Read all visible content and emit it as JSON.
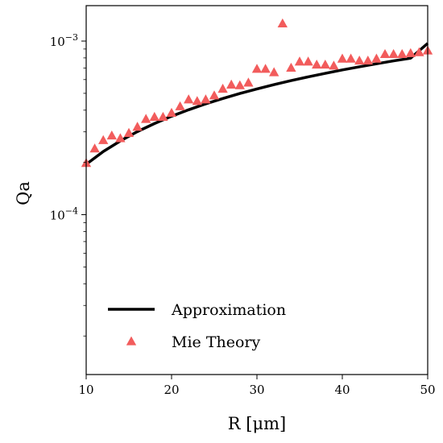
{
  "chart_data": {
    "type": "scatter",
    "title": "",
    "xlabel": "R [μm]",
    "ylabel": "Qa",
    "xlim": [
      10,
      50
    ],
    "ylim": [
      1.2e-05,
      0.0016
    ],
    "yscale": "log",
    "x_ticks": [
      {
        "value": 10,
        "label": "10"
      },
      {
        "value": 20,
        "label": "20"
      },
      {
        "value": 30,
        "label": "30"
      },
      {
        "value": 40,
        "label": "40"
      },
      {
        "value": 50,
        "label": "50"
      }
    ],
    "y_ticks": [
      {
        "value": 0.0001,
        "mantissa": "10",
        "exponent": "−4"
      },
      {
        "value": 0.001,
        "mantissa": "10",
        "exponent": "−3"
      }
    ],
    "legend_position": "lower-left",
    "grid": false,
    "series": [
      {
        "name": "Approximation",
        "type": "line",
        "color": "#000000",
        "x": [
          10,
          12,
          14,
          16,
          18,
          20,
          22,
          24,
          26,
          28,
          30,
          32,
          34,
          36,
          38,
          40,
          42,
          44,
          46,
          48,
          50
        ],
        "y": [
          0.000195,
          0.000231,
          0.000266,
          0.000301,
          0.000335,
          0.000369,
          0.000402,
          0.000435,
          0.000467,
          0.000499,
          0.00053,
          0.000561,
          0.000592,
          0.000622,
          0.000652,
          0.000682,
          0.000711,
          0.00074,
          0.000769,
          0.000797,
          0.00097
        ]
      },
      {
        "name": "Mie Theory",
        "type": "scatter",
        "marker": "triangle",
        "color": "#f25c5c",
        "x": [
          10,
          11,
          12,
          13,
          14,
          15,
          16,
          17,
          18,
          19,
          20,
          21,
          22,
          23,
          24,
          25,
          26,
          27,
          28,
          29,
          30,
          31,
          32,
          33,
          34,
          35,
          36,
          37,
          38,
          39,
          40,
          41,
          42,
          43,
          44,
          45,
          46,
          47,
          48,
          49,
          50
        ],
        "y": [
          0.000198,
          0.00024,
          0.000268,
          0.000285,
          0.000275,
          0.000295,
          0.00032,
          0.000355,
          0.000365,
          0.000365,
          0.000385,
          0.00042,
          0.00046,
          0.00045,
          0.00046,
          0.000485,
          0.00053,
          0.00056,
          0.000555,
          0.000575,
          0.00069,
          0.00069,
          0.00066,
          0.00126,
          0.0007,
          0.00076,
          0.00076,
          0.00073,
          0.00073,
          0.00072,
          0.00079,
          0.00079,
          0.00077,
          0.00077,
          0.00079,
          0.00084,
          0.00084,
          0.00084,
          0.00085,
          0.00086,
          0.00088
        ]
      }
    ]
  }
}
